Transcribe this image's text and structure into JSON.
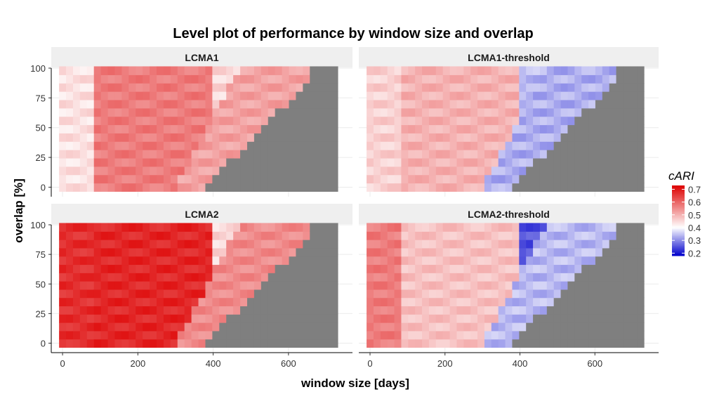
{
  "chart_data": {
    "type": "heatmap",
    "title": "Level plot of performance by window size and overlap",
    "xlabel": "window size [days]",
    "ylabel": "overlap [%]",
    "xlim": [
      -30,
      770
    ],
    "ylim": [
      -8,
      100
    ],
    "x_ticks": [
      0,
      200,
      400,
      600
    ],
    "y_ticks": [
      0,
      25,
      50,
      75,
      100
    ],
    "grid": true,
    "facet_layout": "2x2",
    "panels": [
      {
        "name": "LCMA1",
        "base_value": 0.57,
        "left_value": 0.44,
        "diagonal_value": 0.52,
        "top_value": 0.45
      },
      {
        "name": "LCMA1-threshold",
        "base_value": 0.5,
        "left_value": 0.46,
        "diagonal_value": 0.33,
        "top_value": 0.34
      },
      {
        "name": "LCMA2",
        "base_value": 0.68,
        "left_value": 0.67,
        "diagonal_value": 0.55,
        "top_value": 0.45
      },
      {
        "name": "LCMA2-threshold",
        "base_value": 0.48,
        "left_value": 0.57,
        "diagonal_value": 0.34,
        "top_value": 0.25
      }
    ],
    "legend": {
      "title": "cARI",
      "ticks": [
        "0.7",
        "0.6",
        "0.5",
        "0.4",
        "0.3",
        "0.2"
      ],
      "tick_values": [
        0.7,
        0.6,
        0.5,
        0.4,
        0.3,
        0.2
      ],
      "range": [
        0.18,
        0.73
      ],
      "midpoint": 0.4,
      "low_color": "#0000cc",
      "mid_color": "#ffffff",
      "high_color": "#dd0000",
      "placement": "right"
    },
    "colors": {
      "missing": "#7f7f7f",
      "strip_bg": "#efefef",
      "grid": "#ebebeb"
    }
  }
}
